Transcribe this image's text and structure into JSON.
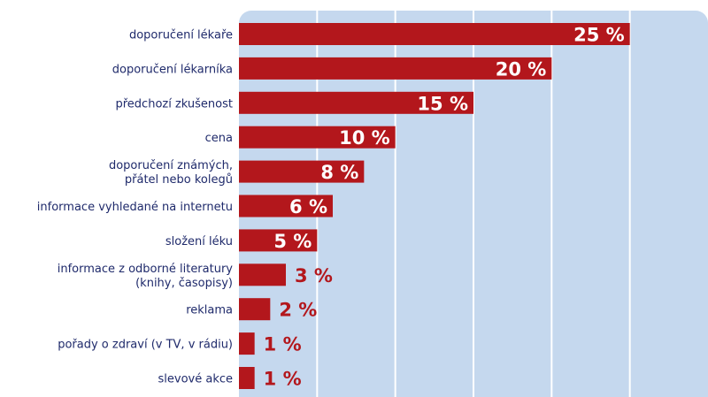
{
  "chart_data": {
    "type": "bar",
    "orientation": "horizontal",
    "categories": [
      [
        "doporučení lékaře"
      ],
      [
        "doporučení lékarníka"
      ],
      [
        "předchozí zkušenost"
      ],
      [
        "cena"
      ],
      [
        "doporučení známých,",
        "přátel nebo kolegů"
      ],
      [
        "informace vyhledané na internetu"
      ],
      [
        "složení léku"
      ],
      [
        "informace z odborné literatury",
        "(knihy, časopisy)"
      ],
      [
        "reklama"
      ],
      [
        "pořady o zdraví (v TV, v rádiu)"
      ],
      [
        "slevové akce"
      ]
    ],
    "values": [
      25,
      20,
      15,
      10,
      8,
      6,
      5,
      3,
      2,
      1,
      1
    ],
    "value_labels": [
      "25 %",
      "20 %",
      "15 %",
      "10 %",
      "8 %",
      "6 %",
      "5 %",
      "3 %",
      "2 %",
      "1 %",
      "1 %"
    ],
    "xlim": [
      0,
      30
    ],
    "grid": true,
    "colors": {
      "bar": "#b3171c",
      "plot_background": "#c5d8ee",
      "gridline": "#ffffff",
      "label_text": "#1f2a6b",
      "value_inside": "#ffffff",
      "value_outside": "#b3171c"
    }
  }
}
